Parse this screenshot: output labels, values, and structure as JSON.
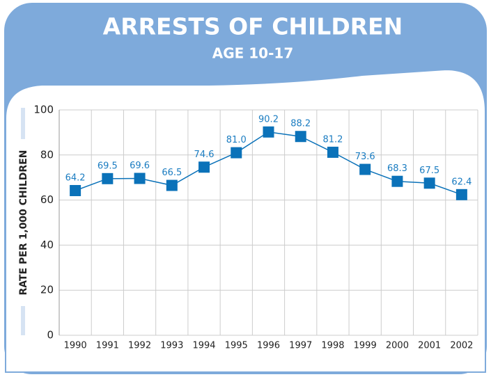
{
  "chart_data": {
    "type": "line",
    "title": "ARRESTS OF CHILDREN",
    "subtitle": "AGE 10-17",
    "y_label": "RATE PER 1,000 CHILDREN",
    "categories": [
      "1990",
      "1991",
      "1992",
      "1993",
      "1994",
      "1995",
      "1996",
      "1997",
      "1998",
      "1999",
      "2000",
      "2001",
      "2002"
    ],
    "values": [
      64.2,
      69.5,
      69.6,
      66.5,
      74.6,
      81.0,
      90.2,
      88.2,
      81.2,
      73.6,
      68.3,
      67.5,
      62.4
    ],
    "value_labels": [
      "64.2",
      "69.5",
      "69.6",
      "66.5",
      "74.6",
      "81.0",
      "90.2",
      "88.2",
      "81.2",
      "73.6",
      "68.3",
      "67.5",
      "62.4"
    ],
    "color": "#0b72b9",
    "ylim": [
      0,
      100
    ],
    "yticks": [
      0,
      20,
      40,
      60,
      80,
      100
    ],
    "grid": true
  }
}
